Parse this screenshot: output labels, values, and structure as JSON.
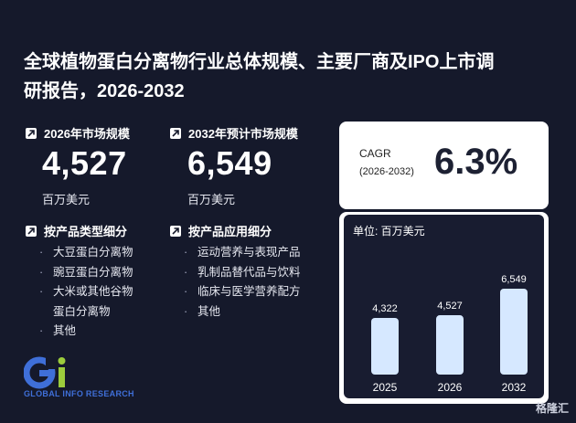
{
  "title_line1": "全球植物蛋白分离物行业总体规模、主要厂商及IPO上市调",
  "title_line2": "研报告，2026-2032",
  "market_2026": {
    "label": "2026年市场规模",
    "value": "4,527",
    "unit": "百万美元"
  },
  "market_2032": {
    "label": "2032年预计市场规模",
    "value": "6,549",
    "unit": "百万美元"
  },
  "segment_type": {
    "heading": "按产品类型细分",
    "items": [
      "大豆蛋白分离物",
      "豌豆蛋白分离物",
      "大米或其他谷物",
      "蛋白分离物",
      "其他"
    ]
  },
  "segment_app": {
    "heading": "按产品应用细分",
    "items": [
      "运动营养与表现产品",
      "乳制品替代品与饮料",
      "临床与医学营养配方",
      "其他"
    ]
  },
  "cagr": {
    "label": "CAGR",
    "period": "(2026-2032)",
    "value": "6.3%"
  },
  "logo": {
    "text": "GLOBAL INFO RESEARCH",
    "glyph": "Gi"
  },
  "watermark": "格隆汇",
  "colors": {
    "background": "#15192b",
    "bar_fill": "#d6e8ff",
    "logo_blue": "#3f6fd8",
    "logo_green": "#9ccc3c"
  },
  "chart_data": {
    "type": "bar",
    "unit_label": "单位: 百万美元",
    "categories": [
      "2025",
      "2026",
      "2032"
    ],
    "values": [
      4322,
      4527,
      6549
    ],
    "value_labels": [
      "4,322",
      "4,527",
      "6,549"
    ]
  }
}
